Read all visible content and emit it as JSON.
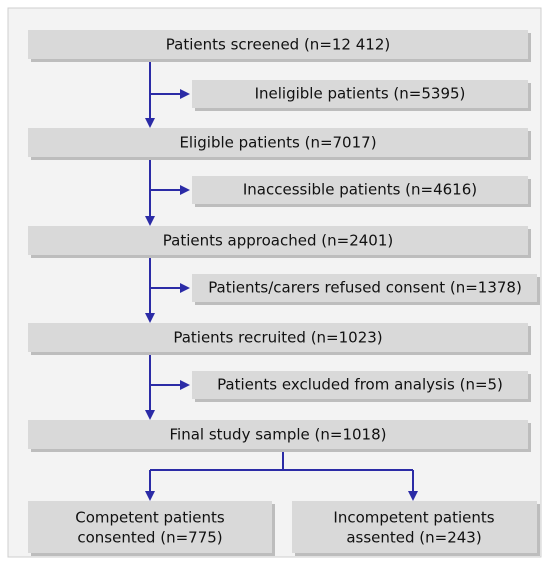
{
  "nodes": [
    {
      "label": "Patients screened (n=12 412)"
    },
    {
      "label": "Ineligible patients (n=5395)"
    },
    {
      "label": "Eligible patients (n=7017)"
    },
    {
      "label": "Inaccessible patients (n=4616)"
    },
    {
      "label": "Patients approached (n=2401)"
    },
    {
      "label": "Patients/carers refused consent (n=1378)"
    },
    {
      "label": "Patients recruited (n=1023)"
    },
    {
      "label": "Patients excluded from analysis (n=5)"
    },
    {
      "label": "Final study sample (n=1018)"
    },
    {
      "lines": [
        "Competent patients",
        "consented (n=775)"
      ]
    },
    {
      "lines": [
        "Incompetent patients",
        "assented (n=243)"
      ]
    }
  ]
}
